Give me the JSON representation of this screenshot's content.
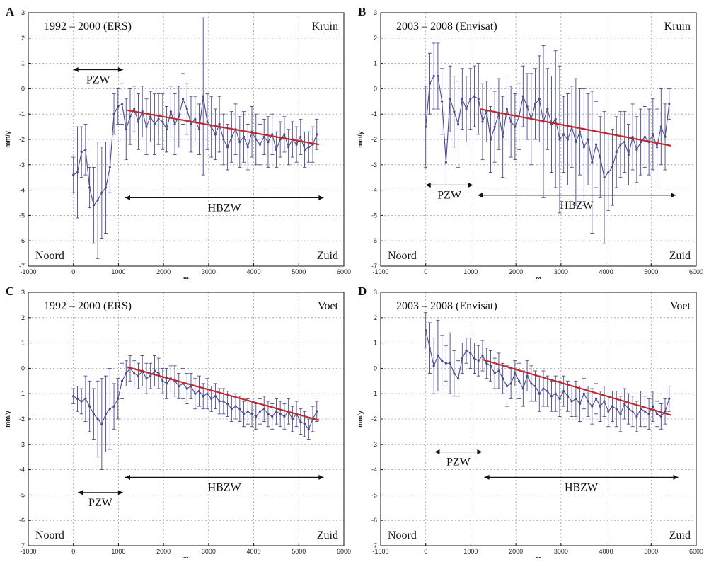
{
  "figure": {
    "colors": {
      "data_line": "#4a4a8c",
      "trend_line": "#c0282d",
      "grid": "#999999",
      "axis": "#111111"
    },
    "grid": true
  },
  "chart_data": [
    {
      "type": "line",
      "panel_label": "A",
      "title": "1992 – 2000 (ERS)",
      "corner_label": "Kruin",
      "xlabel": "m",
      "ylabel": "mm/y",
      "xlim": [
        -1000,
        6000
      ],
      "ylim": [
        -7,
        3
      ],
      "xticks": [
        -1000,
        0,
        1000,
        2000,
        3000,
        4000,
        5000,
        6000
      ],
      "yticks": [
        3,
        2,
        1,
        0,
        -1,
        -2,
        -3,
        -4,
        -5,
        -6,
        -7
      ],
      "noord_label": "Noord",
      "zuid_label": "Zuid",
      "pzw": {
        "label": "PZW",
        "from": 0,
        "to": 1100,
        "y": 0.75
      },
      "hbzw": {
        "label": "HBZW",
        "from": 1150,
        "to": 5550,
        "y": -4.3
      },
      "trend": {
        "from": [
          1200,
          -0.85
        ],
        "to": [
          5450,
          -2.2
        ]
      },
      "series": [
        {
          "x": [
            0,
            90,
            180,
            270,
            360,
            450,
            540,
            630,
            720,
            810,
            900,
            990,
            1080,
            1170,
            1260,
            1350,
            1440,
            1530,
            1620,
            1710,
            1800,
            1890,
            1980,
            2070,
            2160,
            2250,
            2340,
            2430,
            2520,
            2610,
            2700,
            2790,
            2880,
            2970,
            3060,
            3150,
            3240,
            3330,
            3420,
            3510,
            3600,
            3690,
            3780,
            3870,
            3960,
            4050,
            4140,
            4230,
            4320,
            4410,
            4500,
            4590,
            4680,
            4770,
            4860,
            4950,
            5040,
            5130,
            5220,
            5310,
            5400
          ],
          "y": [
            -3.4,
            -3.3,
            -2.5,
            -2.4,
            -3.9,
            -4.6,
            -4.4,
            -4.1,
            -3.9,
            -3.1,
            -1.0,
            -0.7,
            -0.6,
            -1.6,
            -1.1,
            -0.8,
            -1.3,
            -0.9,
            -1.5,
            -1.1,
            -1.4,
            -1.2,
            -1.3,
            -1.6,
            -0.9,
            -1.4,
            -1.1,
            -0.4,
            -0.8,
            -1.4,
            -1.2,
            -1.6,
            -0.3,
            -1.3,
            -1.5,
            -1.8,
            -1.4,
            -2.0,
            -2.3,
            -1.9,
            -1.6,
            -2.1,
            -1.9,
            -2.3,
            -1.7,
            -2.0,
            -2.2,
            -1.9,
            -2.1,
            -1.8,
            -2.4,
            -2.0,
            -1.8,
            -2.3,
            -2.0,
            -2.2,
            -1.9,
            -2.4,
            -2.3,
            -2.2,
            -1.8
          ],
          "err": [
            0.7,
            1.8,
            1.0,
            1.0,
            0.8,
            1.5,
            2.3,
            1.8,
            1.8,
            1.0,
            0.8,
            0.7,
            0.8,
            1.2,
            1.1,
            0.9,
            1.1,
            1.0,
            1.1,
            1.0,
            1.2,
            1.0,
            1.1,
            0.9,
            1.0,
            1.2,
            1.2,
            1.0,
            1.0,
            1.1,
            0.9,
            1.0,
            3.1,
            1.1,
            1.2,
            1.0,
            1.1,
            1.0,
            0.9,
            1.0,
            1.0,
            1.0,
            1.0,
            0.9,
            1.0,
            1.0,
            0.8,
            0.7,
            1.0,
            0.8,
            0.7,
            0.7,
            0.7,
            0.7,
            0.7,
            0.7,
            0.7,
            0.7,
            0.6,
            0.7,
            0.6
          ]
        }
      ]
    },
    {
      "type": "line",
      "panel_label": "B",
      "title": "2003 – 2008 (Envisat)",
      "corner_label": "Kruin",
      "xlabel": "m",
      "ylabel": "mm/y",
      "xlim": [
        -1000,
        6000
      ],
      "ylim": [
        -7,
        3
      ],
      "xticks": [
        -1000,
        0,
        1000,
        2000,
        3000,
        4000,
        5000,
        6000
      ],
      "yticks": [
        3,
        2,
        1,
        0,
        -1,
        -2,
        -3,
        -4,
        -5,
        -6,
        -7
      ],
      "noord_label": "Noord",
      "zuid_label": "Zuid",
      "pzw": {
        "label": "PZW",
        "from": 0,
        "to": 1050,
        "y": -3.8
      },
      "hbzw": {
        "label": "HBZW",
        "from": 1150,
        "to": 5550,
        "y": -4.2
      },
      "trend": {
        "from": [
          1200,
          -0.8
        ],
        "to": [
          5450,
          -2.25
        ]
      },
      "series": [
        {
          "x": [
            0,
            90,
            180,
            270,
            360,
            450,
            540,
            630,
            720,
            810,
            900,
            990,
            1080,
            1170,
            1260,
            1350,
            1440,
            1530,
            1620,
            1710,
            1800,
            1890,
            1980,
            2070,
            2160,
            2250,
            2340,
            2430,
            2520,
            2610,
            2700,
            2790,
            2880,
            2970,
            3060,
            3150,
            3240,
            3330,
            3420,
            3510,
            3600,
            3690,
            3780,
            3870,
            3960,
            4050,
            4140,
            4230,
            4320,
            4410,
            4500,
            4590,
            4680,
            4770,
            4860,
            4950,
            5040,
            5130,
            5220,
            5310,
            5400
          ],
          "y": [
            -1.5,
            0.2,
            0.5,
            0.5,
            -0.5,
            -2.9,
            -0.4,
            -0.9,
            -1.4,
            -0.4,
            -0.8,
            -0.4,
            -0.3,
            -0.4,
            -1.3,
            -0.9,
            -2.0,
            -1.5,
            -1.0,
            -1.9,
            -0.8,
            -1.3,
            -1.5,
            -1.1,
            -0.3,
            -0.7,
            -1.2,
            -0.6,
            -0.4,
            -1.3,
            -0.8,
            -1.4,
            -1.2,
            -2.0,
            -1.8,
            -2.0,
            -1.5,
            -2.1,
            -1.7,
            -2.3,
            -2.0,
            -2.9,
            -2.2,
            -2.7,
            -3.5,
            -3.3,
            -3.1,
            -2.5,
            -2.2,
            -2.1,
            -2.6,
            -1.9,
            -2.4,
            -2.1,
            -1.9,
            -2.1,
            -1.8,
            -2.3,
            -1.5,
            -1.9,
            -0.6
          ],
          "err": [
            1.6,
            1.2,
            1.3,
            1.3,
            1.3,
            0.9,
            1.3,
            1.4,
            1.7,
            1.2,
            1.3,
            1.2,
            1.2,
            1.4,
            1.5,
            1.2,
            1.3,
            1.4,
            1.4,
            1.6,
            1.3,
            1.4,
            1.3,
            1.3,
            1.2,
            1.3,
            1.8,
            1.4,
            1.7,
            3.0,
            1.6,
            1.9,
            2.7,
            2.9,
            1.5,
            1.8,
            1.6,
            2.5,
            1.7,
            2.3,
            1.8,
            2.8,
            1.7,
            1.6,
            2.6,
            1.5,
            1.5,
            1.4,
            1.3,
            1.2,
            1.2,
            1.3,
            1.3,
            1.3,
            1.2,
            1.3,
            1.4,
            1.5,
            1.5,
            1.3,
            0.6
          ]
        }
      ]
    },
    {
      "type": "line",
      "panel_label": "C",
      "title": "1992 – 2000 (ERS)",
      "corner_label": "Voet",
      "xlabel": "m",
      "ylabel": "mm/y",
      "xlim": [
        -1000,
        6000
      ],
      "ylim": [
        -7,
        3
      ],
      "xticks": [
        -1000,
        0,
        1000,
        2000,
        3000,
        4000,
        5000,
        6000
      ],
      "yticks": [
        3,
        2,
        1,
        0,
        -1,
        -2,
        -3,
        -4,
        -5,
        -6,
        -7
      ],
      "noord_label": "Noord",
      "zuid_label": "Zuid",
      "pzw": {
        "label": "PZW",
        "from": 100,
        "to": 1100,
        "y": -4.9
      },
      "hbzw": {
        "label": "HBZW",
        "from": 1150,
        "to": 5550,
        "y": -4.3
      },
      "trend": {
        "from": [
          1200,
          0.05
        ],
        "to": [
          5450,
          -2.05
        ]
      },
      "series": [
        {
          "x": [
            0,
            90,
            180,
            270,
            360,
            450,
            540,
            630,
            720,
            810,
            900,
            990,
            1080,
            1170,
            1260,
            1350,
            1440,
            1530,
            1620,
            1710,
            1800,
            1890,
            1980,
            2070,
            2160,
            2250,
            2340,
            2430,
            2520,
            2610,
            2700,
            2790,
            2880,
            2970,
            3060,
            3150,
            3240,
            3330,
            3420,
            3510,
            3600,
            3690,
            3780,
            3870,
            3960,
            4050,
            4140,
            4230,
            4320,
            4410,
            4500,
            4590,
            4680,
            4770,
            4860,
            4950,
            5040,
            5130,
            5220,
            5310,
            5400
          ],
          "y": [
            -1.1,
            -1.2,
            -1.3,
            -1.2,
            -1.5,
            -1.8,
            -2.0,
            -2.2,
            -1.8,
            -1.6,
            -1.5,
            -1.2,
            -0.5,
            -0.2,
            0.0,
            -0.2,
            -0.3,
            -0.1,
            -0.4,
            -0.3,
            -0.1,
            -0.2,
            -0.5,
            -0.6,
            -0.4,
            -0.5,
            -0.7,
            -0.6,
            -0.8,
            -0.7,
            -1.0,
            -0.9,
            -1.1,
            -1.0,
            -1.2,
            -1.1,
            -1.3,
            -1.3,
            -1.4,
            -1.6,
            -1.5,
            -1.6,
            -1.8,
            -1.7,
            -1.8,
            -1.9,
            -1.7,
            -1.6,
            -1.8,
            -1.9,
            -1.7,
            -1.8,
            -1.9,
            -1.7,
            -2.0,
            -1.8,
            -2.1,
            -2.2,
            -2.4,
            -2.0,
            -1.7
          ],
          "err": [
            0.3,
            0.5,
            0.5,
            0.9,
            1.0,
            1.0,
            1.5,
            1.8,
            1.5,
            1.6,
            0.9,
            0.8,
            0.7,
            0.5,
            0.5,
            0.5,
            0.5,
            0.6,
            0.6,
            0.5,
            0.6,
            0.6,
            0.5,
            0.6,
            0.5,
            0.6,
            0.5,
            0.6,
            0.6,
            0.5,
            0.6,
            0.6,
            0.5,
            0.6,
            0.5,
            0.5,
            0.5,
            0.5,
            0.5,
            0.5,
            0.5,
            0.5,
            0.5,
            0.5,
            0.5,
            0.5,
            0.5,
            0.5,
            0.5,
            0.5,
            0.5,
            0.5,
            0.5,
            0.5,
            0.5,
            0.5,
            0.5,
            0.5,
            0.4,
            0.5,
            0.4
          ]
        }
      ]
    },
    {
      "type": "line",
      "panel_label": "D",
      "title": "2003 – 2008 (Envisat)",
      "corner_label": "Voet",
      "xlabel": "m",
      "ylabel": "mm/y",
      "xlim": [
        -1000,
        6000
      ],
      "ylim": [
        -7,
        3
      ],
      "xticks": [
        -1000,
        0,
        1000,
        2000,
        3000,
        4000,
        5000,
        6000
      ],
      "yticks": [
        3,
        2,
        1,
        0,
        -1,
        -2,
        -3,
        -4,
        -5,
        -6,
        -7
      ],
      "noord_label": "Noord",
      "zuid_label": "Zuid",
      "pzw": {
        "label": "PZW",
        "from": 200,
        "to": 1250,
        "y": -3.3
      },
      "hbzw": {
        "label": "HBZW",
        "from": 1300,
        "to": 5600,
        "y": -4.3
      },
      "trend": {
        "from": [
          1250,
          0.35
        ],
        "to": [
          5450,
          -1.85
        ]
      },
      "series": [
        {
          "x": [
            0,
            90,
            180,
            270,
            360,
            450,
            540,
            630,
            720,
            810,
            900,
            990,
            1080,
            1170,
            1260,
            1350,
            1440,
            1530,
            1620,
            1710,
            1800,
            1890,
            1980,
            2070,
            2160,
            2250,
            2340,
            2430,
            2520,
            2610,
            2700,
            2790,
            2880,
            2970,
            3060,
            3150,
            3240,
            3330,
            3420,
            3510,
            3600,
            3690,
            3780,
            3870,
            3960,
            4050,
            4140,
            4230,
            4320,
            4410,
            4500,
            4590,
            4680,
            4770,
            4860,
            4950,
            5040,
            5130,
            5220,
            5310,
            5400
          ],
          "y": [
            1.5,
            0.8,
            0.1,
            0.5,
            0.3,
            0.2,
            0.2,
            -0.2,
            -0.4,
            0.4,
            0.7,
            0.6,
            0.4,
            0.3,
            0.5,
            0.2,
            0.1,
            -0.2,
            -0.1,
            -0.4,
            -0.7,
            -0.6,
            -0.2,
            -0.5,
            -0.8,
            -0.3,
            -0.6,
            -0.7,
            -1.0,
            -0.8,
            -0.9,
            -1.1,
            -1.0,
            -1.2,
            -0.9,
            -1.1,
            -1.3,
            -1.2,
            -1.4,
            -1.0,
            -1.3,
            -1.5,
            -1.2,
            -1.5,
            -1.3,
            -1.7,
            -1.5,
            -1.6,
            -1.8,
            -1.4,
            -1.6,
            -1.7,
            -1.9,
            -1.6,
            -1.7,
            -1.8,
            -1.5,
            -1.8,
            -1.9,
            -1.7,
            -1.2
          ],
          "err": [
            0.7,
            1.0,
            1.1,
            1.4,
            1.0,
            0.7,
            1.2,
            0.9,
            0.7,
            0.6,
            0.5,
            0.6,
            0.6,
            0.6,
            0.6,
            0.6,
            0.6,
            0.6,
            0.7,
            0.6,
            0.8,
            0.6,
            0.5,
            0.7,
            0.7,
            0.6,
            0.7,
            0.6,
            0.7,
            0.7,
            0.6,
            0.6,
            0.7,
            0.7,
            0.6,
            0.6,
            0.6,
            0.7,
            0.7,
            0.6,
            0.6,
            0.7,
            0.6,
            0.6,
            0.6,
            0.6,
            0.6,
            0.7,
            0.7,
            0.6,
            0.6,
            0.6,
            0.6,
            0.7,
            0.6,
            0.6,
            0.6,
            0.5,
            0.5,
            0.5,
            0.5
          ]
        }
      ]
    }
  ]
}
